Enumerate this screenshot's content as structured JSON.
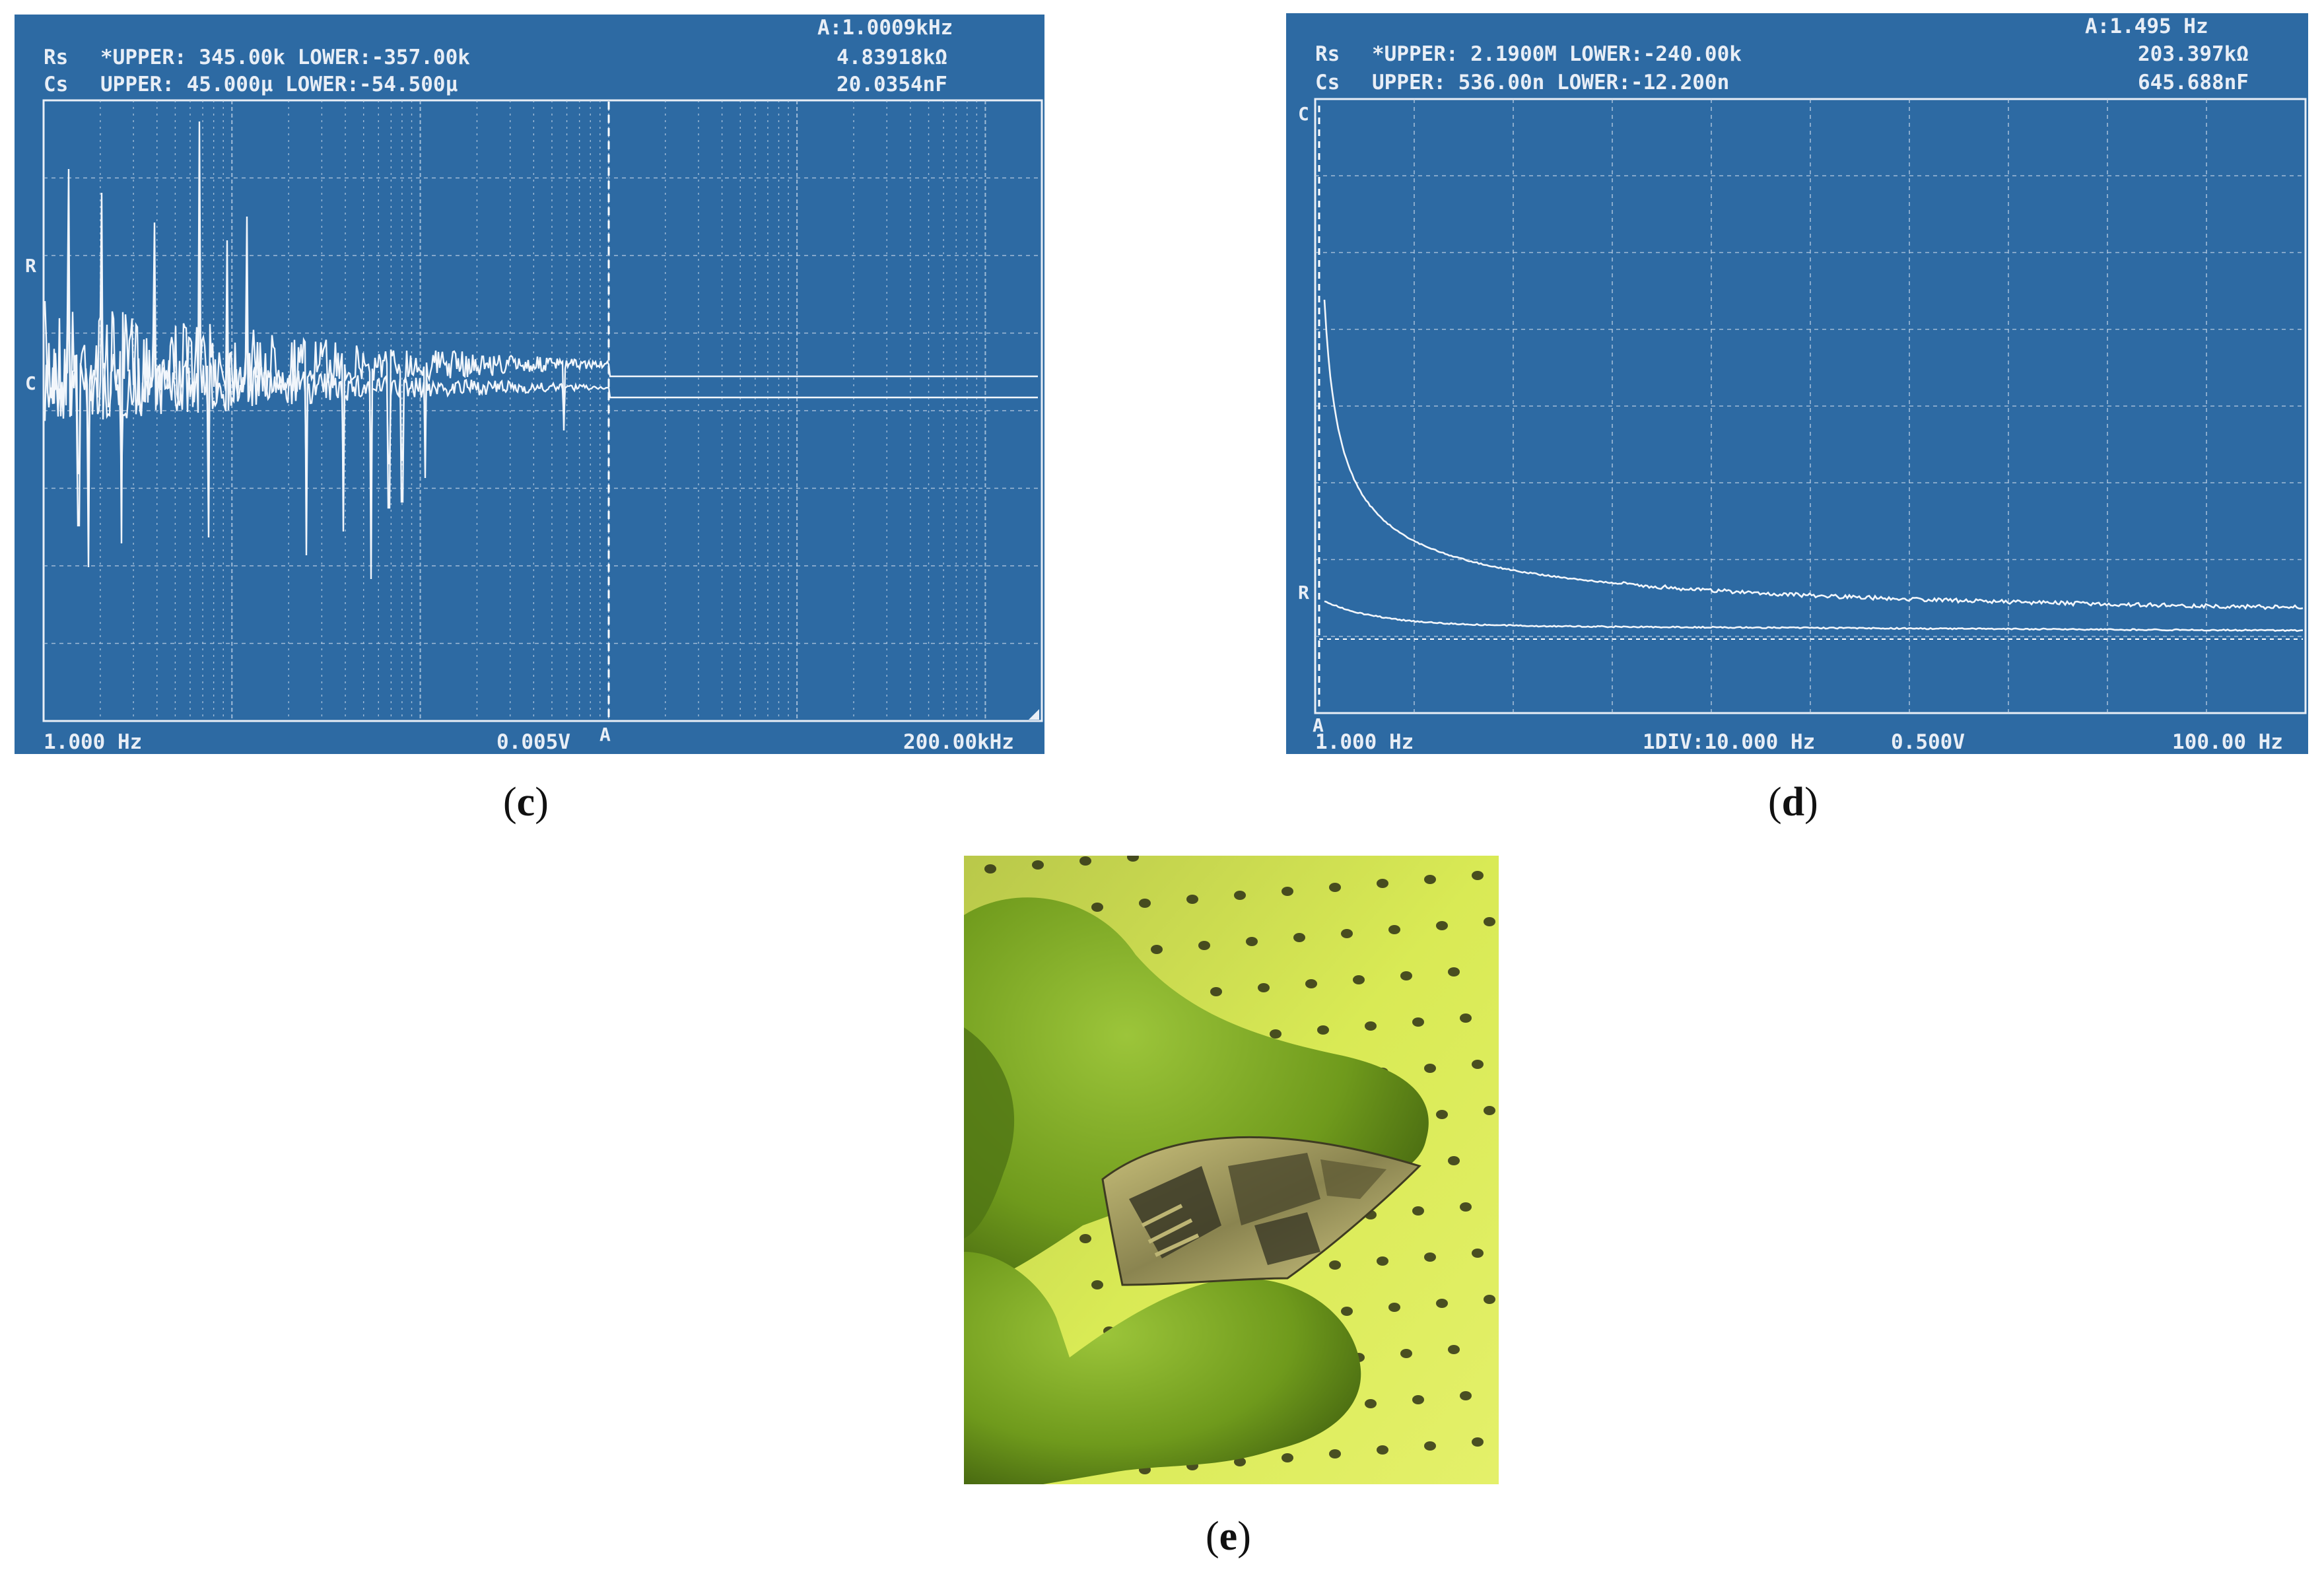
{
  "panel_c": {
    "caption_open": "(",
    "caption_letter": "c",
    "caption_close": ")",
    "marker": "A:1.0009kHz",
    "rs_label": "Rs",
    "rs_limits": "*UPPER: 345.00k LOWER:-357.00k",
    "cs_label": "Cs",
    "cs_limits": " UPPER: 45.000μ LOWER:-54.500μ",
    "rs_value": "4.83918kΩ",
    "cs_value": "20.0354nF",
    "trace_r_label": "R",
    "trace_c_label": "C",
    "cursor_label": "A",
    "x_start": "1.000 Hz",
    "scale": "0.005V",
    "x_end": "200.00kHz"
  },
  "panel_d": {
    "caption_open": "(",
    "caption_letter": "d",
    "caption_close": ")",
    "marker": "A:1.495 Hz",
    "rs_label": "Rs",
    "rs_limits": "*UPPER: 2.1900M LOWER:-240.00k",
    "cs_label": "Cs",
    "cs_limits": " UPPER: 536.00n LOWER:-12.200n",
    "rs_value": "203.397kΩ",
    "cs_value": "645.688nF",
    "trace_c_label": "C",
    "trace_r_label": "R",
    "cursor_label": "A",
    "x_start": "1.000 Hz",
    "division": "1DIV:10.000 Hz",
    "scale": "0.500V",
    "x_end": "100.00 Hz"
  },
  "panel_e": {
    "caption_open": "(",
    "caption_letter": "e",
    "caption_close": ")"
  },
  "colors": {
    "screen_bg": "#2d6aa3",
    "trace": "#e8eef6",
    "glove": "#7fae1e",
    "background_yellow": "#d8e84a"
  }
}
